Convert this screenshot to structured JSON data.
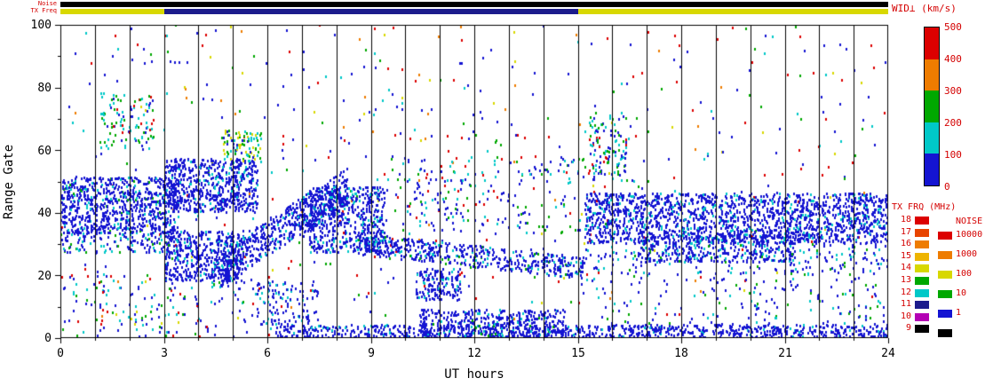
{
  "top_bars": {
    "noise_label": "Noise",
    "tx_freq_label": "TX Freq",
    "noise_bar_color": "#000000",
    "tx_freq_segments": [
      {
        "t0": 0,
        "t1": 3,
        "color": "#d8d800"
      },
      {
        "t0": 3,
        "t1": 15,
        "color": "#1c1c8c"
      },
      {
        "t0": 15,
        "t1": 24,
        "color": "#d8d800"
      }
    ]
  },
  "axes": {
    "x_label": "UT hours",
    "y_label": "Range Gate",
    "x_ticks": [
      0,
      3,
      6,
      9,
      12,
      15,
      18,
      21,
      24
    ],
    "x_minor_every": 1,
    "y_ticks": [
      0,
      20,
      40,
      60,
      80,
      100
    ],
    "y_minor_every": 10,
    "y_tick_labels_top_to_bottom": [
      "100",
      "80",
      "60",
      "40",
      "20",
      "0"
    ]
  },
  "legends": {
    "wid": {
      "title": "WID⊥ (km/s)",
      "tick_labels": [
        "500",
        "400",
        "300",
        "200",
        "100",
        "0"
      ],
      "segment_colors_top_to_bottom": [
        "#dc0000",
        "#ee7c00",
        "#00a800",
        "#00c8c8",
        "#1414d2"
      ]
    },
    "tx_frq": {
      "title": "TX FRQ (MHz)",
      "items": [
        {
          "label": "18",
          "color": "#dc0000"
        },
        {
          "label": "17",
          "color": "#e84400"
        },
        {
          "label": "16",
          "color": "#ee7c00"
        },
        {
          "label": "15",
          "color": "#eeb400"
        },
        {
          "label": "14",
          "color": "#d8d800"
        },
        {
          "label": "13",
          "color": "#00a800"
        },
        {
          "label": "12",
          "color": "#00c8c8"
        },
        {
          "label": "11",
          "color": "#1c1c8c"
        },
        {
          "label": "10",
          "color": "#b400b4"
        },
        {
          "label": "9",
          "color": "#000000"
        }
      ]
    },
    "noise": {
      "title": "NOISE",
      "items": [
        {
          "label": "10000",
          "color": "#dc0000"
        },
        {
          "label": "1000",
          "color": "#ee7c00"
        },
        {
          "label": "100",
          "color": "#d8d800"
        },
        {
          "label": "10",
          "color": "#00a800"
        },
        {
          "label": "1",
          "color": "#1414d2"
        },
        {
          "label": "",
          "color": "#000000"
        }
      ]
    }
  },
  "chart_data": {
    "type": "scatter",
    "title": "",
    "xlabel": "UT hours",
    "ylabel": "Range Gate",
    "xlim": [
      0,
      24
    ],
    "ylim": [
      0,
      100
    ],
    "colorbar": {
      "label": "WID⊥ (km/s)",
      "range": [
        0,
        500
      ],
      "low_color": "blue",
      "high_color": "red"
    },
    "description": "Radar range-time plot of perpendicular spectral width. Dominantly low-width (blue) backscatter: a dense band at gates 33-51 from 00-03 UT, a large blue mass at gates 18-57 from 03-06 UT with a rising diagonal band from gate ~22 at 04:30 to ~48 at 08:20, a patch at gates 27-48 from 07-09 UT, a weak descending band (gates 30 to 22) from 08:30-15 UT, a dense band at gates 20-46 from 15-24 UT, and a near-range band at gates 0-9 from 06-24 UT. Sparse multicolour noise points scattered everywhere; cyan/green clusters near gates 60-78 around 01-03 UT, 04:40-05:50 UT and 15:20-16:30 UT. Black vertical grid line each hour. Top status bars: noise (black) and TX frequency (yellow 00-03 and 15-24 UT, navy 03-15 UT).",
    "gridlines": {
      "vertical_every_hour": true,
      "color": "#000000"
    },
    "palette": {
      "blue": "#1414d2",
      "cyan": "#00c8c8",
      "green": "#00a800",
      "yellow": "#d8d800",
      "orange": "#ee7c00",
      "red": "#dc0000"
    },
    "seed": 1337,
    "point_size": [
      2,
      3
    ],
    "features": [
      {
        "name": "background-sparse",
        "t0": 0,
        "t1": 24,
        "g0": 6,
        "g1": 100,
        "n": 650,
        "colors": {
          "blue": 0.32,
          "red": 0.2,
          "green": 0.16,
          "cyan": 0.16,
          "orange": 0.08,
          "yellow": 0.08
        }
      },
      {
        "name": "background-low-morning",
        "t0": 0,
        "t1": 6.2,
        "g0": 0,
        "g1": 20,
        "n": 160,
        "colors": {
          "blue": 0.55,
          "red": 0.12,
          "green": 0.12,
          "cyan": 0.15,
          "yellow": 0.06
        }
      },
      {
        "name": "band-00-03",
        "t0": 0,
        "t1": 3.4,
        "g0": 33,
        "g1": 51,
        "n": 750,
        "colors": {
          "blue": 0.85,
          "cyan": 0.11,
          "green": 0.04
        }
      },
      {
        "name": "band-00-03-fringe",
        "t0": 0,
        "t1": 3.4,
        "g0": 27,
        "g1": 33,
        "n": 130,
        "colors": {
          "blue": 0.7,
          "cyan": 0.2,
          "green": 0.1
        }
      },
      {
        "name": "cluster-high-01-03",
        "t0": 1.1,
        "t1": 2.7,
        "g0": 60,
        "g1": 78,
        "n": 95,
        "colors": {
          "cyan": 0.42,
          "green": 0.3,
          "blue": 0.16,
          "red": 0.12
        }
      },
      {
        "name": "blob-03-06-upper",
        "t0": 3.0,
        "t1": 5.7,
        "g0": 40,
        "g1": 57,
        "n": 640,
        "colors": {
          "blue": 0.9,
          "cyan": 0.1
        }
      },
      {
        "name": "block-03-05-lower",
        "t0": 3.0,
        "t1": 5.3,
        "g0": 18,
        "g1": 34,
        "n": 460,
        "colors": {
          "blue": 0.88,
          "cyan": 0.12
        }
      },
      {
        "name": "diagonal-rise",
        "type": "diag",
        "t0": 4.6,
        "t1": 8.3,
        "gc0": 22,
        "gc1": 48,
        "hw": 6,
        "n": 600,
        "colors": {
          "blue": 0.88,
          "cyan": 0.12
        }
      },
      {
        "name": "green-patch-05",
        "t0": 4.7,
        "t1": 5.8,
        "g0": 56,
        "g1": 66,
        "n": 80,
        "colors": {
          "green": 0.38,
          "yellow": 0.25,
          "cyan": 0.25,
          "blue": 0.12
        }
      },
      {
        "name": "low-sparse-06-08",
        "t0": 5.5,
        "t1": 7.5,
        "g0": 4,
        "g1": 18,
        "n": 120,
        "colors": {
          "blue": 0.8,
          "cyan": 0.2
        }
      },
      {
        "name": "patch-07-09",
        "t0": 7.2,
        "t1": 9.4,
        "g0": 27,
        "g1": 48,
        "n": 520,
        "colors": {
          "blue": 0.86,
          "cyan": 0.14
        }
      },
      {
        "name": "band-descending",
        "type": "diag",
        "t0": 8.5,
        "t1": 15.2,
        "gc0": 30,
        "gc1": 22,
        "hw": 3.5,
        "n": 480,
        "colors": {
          "blue": 0.8,
          "cyan": 0.14,
          "green": 0.06
        }
      },
      {
        "name": "bottom-band",
        "t0": 6.2,
        "t1": 24,
        "g0": 0,
        "g1": 4,
        "n": 850,
        "colors": {
          "blue": 0.92,
          "cyan": 0.08
        }
      },
      {
        "name": "bottom-band-thick",
        "t0": 10.4,
        "t1": 14.6,
        "g0": 0,
        "g1": 9,
        "n": 420,
        "colors": {
          "blue": 0.85,
          "cyan": 0.1,
          "green": 0.05
        }
      },
      {
        "name": "mid-sparse",
        "t0": 9.0,
        "t1": 15.2,
        "g0": 33,
        "g1": 58,
        "n": 220,
        "colors": {
          "blue": 0.55,
          "cyan": 0.2,
          "green": 0.12,
          "red": 0.13
        }
      },
      {
        "name": "patch-10-11-low",
        "t0": 10.3,
        "t1": 11.6,
        "g0": 12,
        "g1": 22,
        "n": 160,
        "colors": {
          "blue": 0.85,
          "cyan": 0.15
        }
      },
      {
        "name": "cluster-high-15-16",
        "t0": 15.3,
        "t1": 16.4,
        "g0": 50,
        "g1": 72,
        "n": 120,
        "colors": {
          "cyan": 0.38,
          "blue": 0.3,
          "green": 0.2,
          "red": 0.12
        }
      },
      {
        "name": "band-15-24",
        "t0": 15.2,
        "t1": 24,
        "g0": 30,
        "g1": 46,
        "n": 1700,
        "colors": {
          "blue": 0.88,
          "cyan": 0.12
        }
      },
      {
        "name": "band-17-21-low",
        "t0": 16.8,
        "t1": 21.3,
        "g0": 24,
        "g1": 33,
        "n": 340,
        "colors": {
          "blue": 0.85,
          "cyan": 0.15
        }
      },
      {
        "name": "band-15-24-fringe",
        "t0": 15.2,
        "t1": 24,
        "g0": 20,
        "g1": 30,
        "n": 210,
        "colors": {
          "blue": 0.68,
          "cyan": 0.2,
          "green": 0.12
        }
      },
      {
        "name": "evening-low-sparse",
        "t0": 15,
        "t1": 24,
        "g0": 4,
        "g1": 20,
        "n": 140,
        "colors": {
          "blue": 0.7,
          "cyan": 0.15,
          "green": 0.15
        }
      }
    ]
  }
}
